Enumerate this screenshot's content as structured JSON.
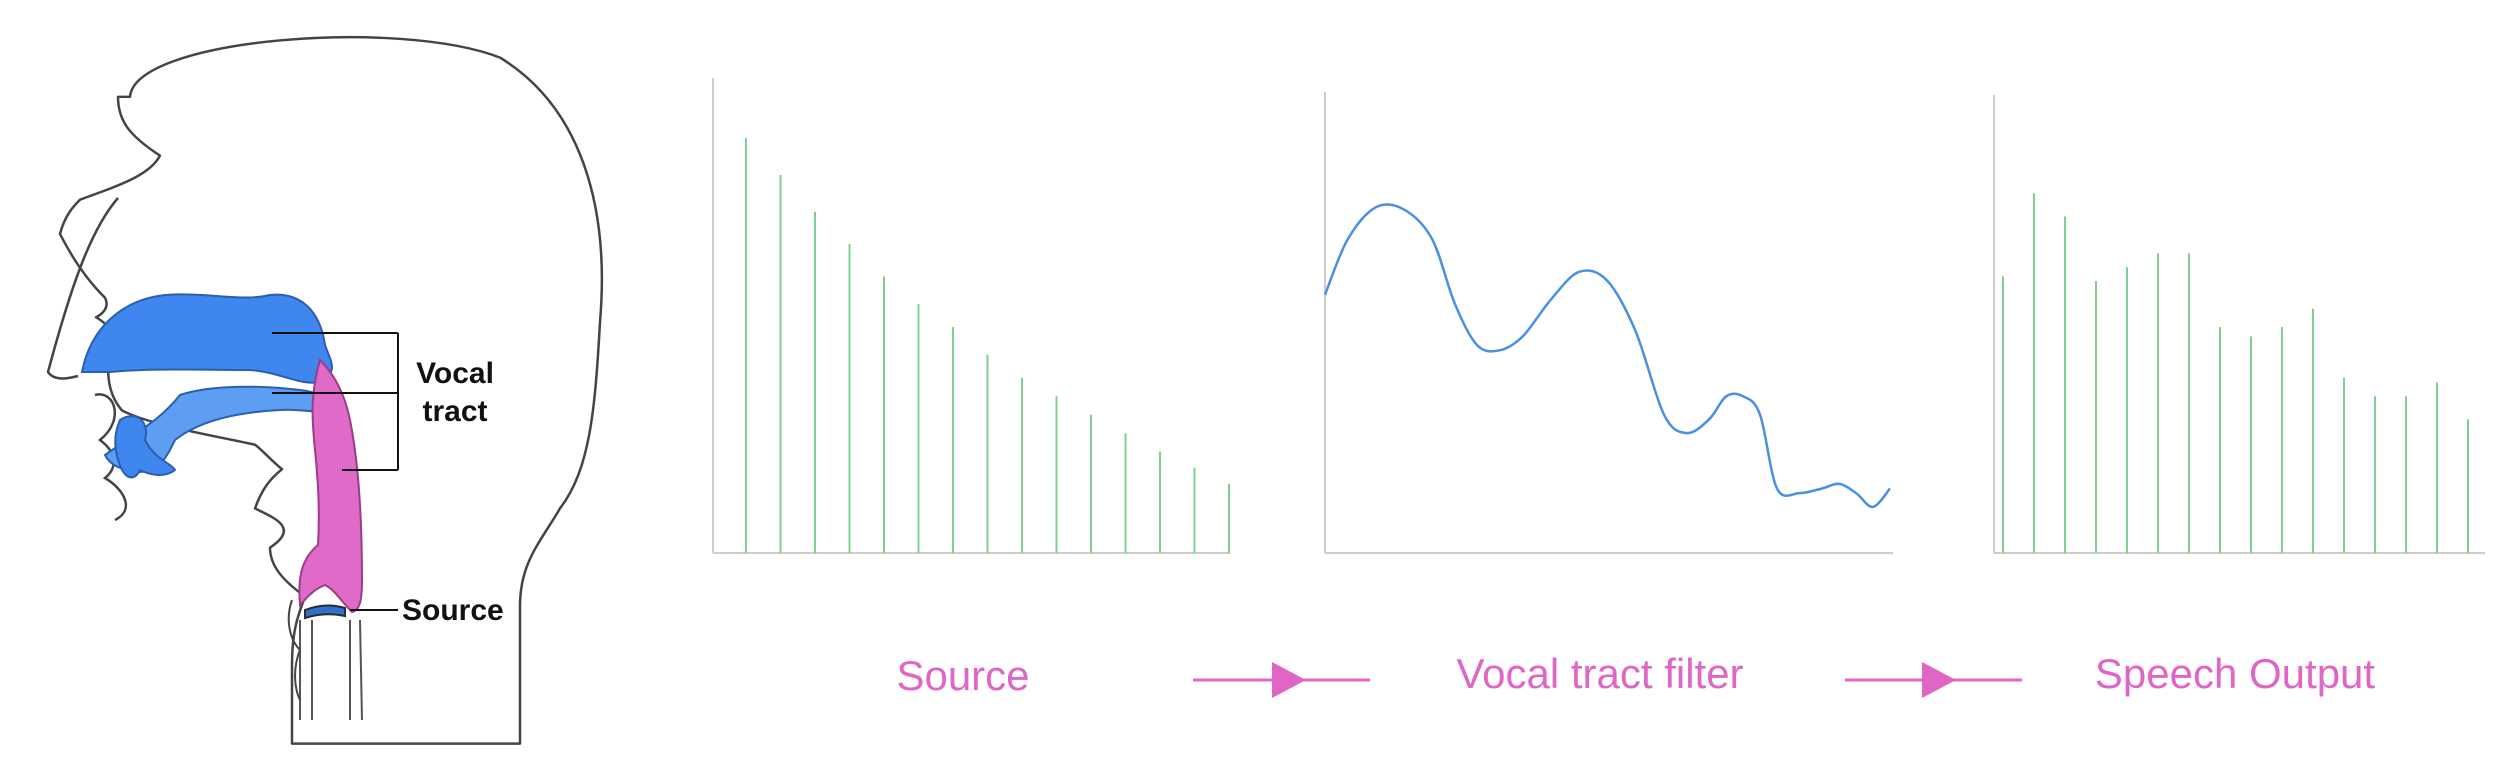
{
  "anatomy": {
    "vocal_tract_label_line1": "Vocal",
    "vocal_tract_label_line2": "tract",
    "source_label": "Source"
  },
  "captions": {
    "source": "Source",
    "filter": "Vocal tract filter",
    "output": "Speech Output"
  },
  "colors": {
    "accent": "#e066c6",
    "harmonic": "#7fd08f",
    "filter_curve": "#4a90e2",
    "tract_blue": "#3f86ee",
    "tract_pink": "#e06ac8",
    "outline": "#444444",
    "axis": "#cccccc"
  },
  "chart_data": [
    {
      "type": "bar",
      "panel": "source-spectrum",
      "values": [
        0.9,
        0.82,
        0.74,
        0.67,
        0.6,
        0.54,
        0.49,
        0.43,
        0.38,
        0.34,
        0.3,
        0.26,
        0.22,
        0.185,
        0.15
      ],
      "ylim": [
        0,
        1
      ]
    },
    {
      "type": "line",
      "panel": "vocal-tract-filter",
      "x": [
        0,
        0.04,
        0.09,
        0.14,
        0.19,
        0.23,
        0.27,
        0.31,
        0.35,
        0.4,
        0.45,
        0.5,
        0.55,
        0.6,
        0.64,
        0.68,
        0.71,
        0.74,
        0.77,
        0.8,
        0.84,
        0.88,
        0.91,
        0.94,
        0.97,
        1.0
      ],
      "y": [
        0.56,
        0.68,
        0.75,
        0.745,
        0.68,
        0.54,
        0.45,
        0.44,
        0.47,
        0.55,
        0.61,
        0.59,
        0.48,
        0.3,
        0.26,
        0.29,
        0.34,
        0.34,
        0.3,
        0.14,
        0.13,
        0.14,
        0.15,
        0.13,
        0.1,
        0.14
      ],
      "ylim": [
        0,
        1
      ]
    },
    {
      "type": "bar",
      "panel": "speech-output-spectrum",
      "values": [
        0.6,
        0.78,
        0.73,
        0.59,
        0.62,
        0.65,
        0.65,
        0.49,
        0.47,
        0.49,
        0.53,
        0.38,
        0.34,
        0.34,
        0.37,
        0.29
      ],
      "ylim": [
        0,
        1
      ]
    }
  ]
}
